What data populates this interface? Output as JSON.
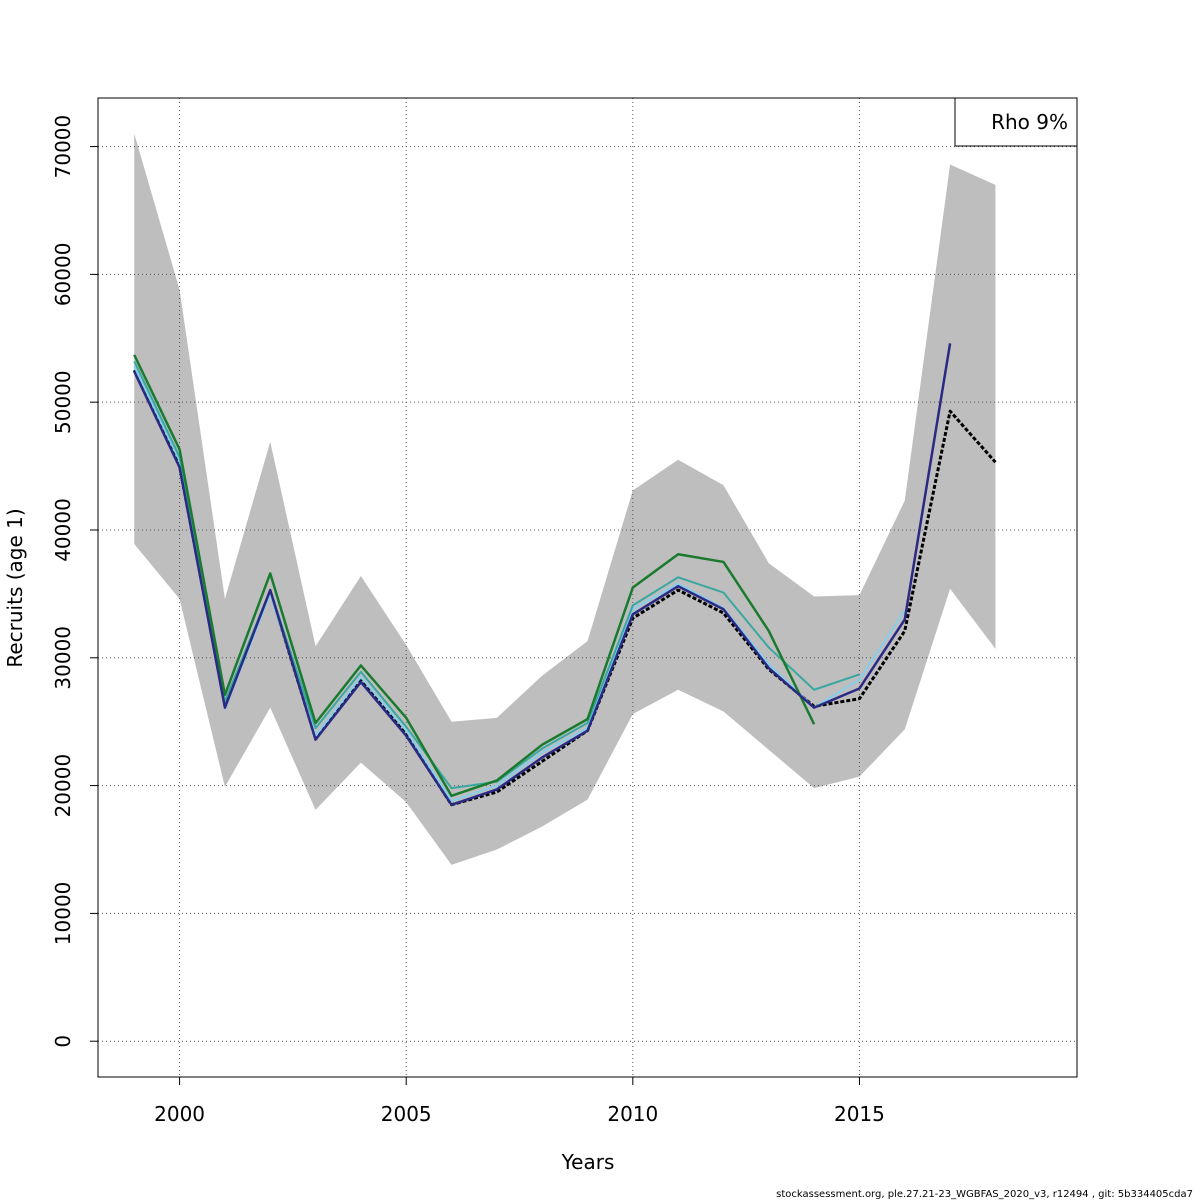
{
  "chart_data": {
    "type": "line",
    "title": "",
    "xlabel": "Years",
    "ylabel": "Recruits (age 1)",
    "xlim": [
      1998.2,
      2019.8
    ],
    "ylim": [
      -2800,
      73800
    ],
    "x_ticks": [
      2000,
      2005,
      2010,
      2015
    ],
    "y_ticks": [
      0,
      10000,
      20000,
      30000,
      40000,
      50000,
      60000,
      70000
    ],
    "grid": true,
    "legend": {
      "position": "top-right",
      "text": "Rho 9%"
    },
    "confidence_band": {
      "color": "#bebebe",
      "x": [
        1999,
        2000,
        2001,
        2002,
        2003,
        2004,
        2005,
        2006,
        2007,
        2008,
        2009,
        2010,
        2011,
        2012,
        2013,
        2014,
        2015,
        2016,
        2017,
        2018
      ],
      "upper": [
        71000,
        58800,
        34600,
        46900,
        30900,
        36400,
        31000,
        25000,
        25300,
        28600,
        31300,
        43100,
        45500,
        43500,
        37400,
        34800,
        34900,
        42300,
        68600,
        67000
      ],
      "lower": [
        38900,
        34600,
        19900,
        26100,
        18100,
        21800,
        18700,
        13800,
        15000,
        16800,
        18900,
        25600,
        27500,
        25800,
        22800,
        19800,
        20700,
        24400,
        35400,
        30700
      ]
    },
    "series": [
      {
        "color": "#000000",
        "dashed": true,
        "width": 3,
        "x": [
          1999,
          2000,
          2001,
          2002,
          2003,
          2004,
          2005,
          2006,
          2007,
          2008,
          2009,
          2010,
          2011,
          2012,
          2013,
          2014,
          2015,
          2016,
          2017,
          2018
        ],
        "values": [
          52500,
          45000,
          26300,
          35200,
          23700,
          28200,
          24000,
          18500,
          19500,
          21900,
          24300,
          33100,
          35300,
          33500,
          29100,
          26200,
          26800,
          32100,
          49300,
          45300
        ]
      },
      {
        "color": "#87ceeb",
        "dashed": false,
        "width": 2,
        "x": [
          1999,
          2000,
          2001,
          2002,
          2003,
          2004,
          2005,
          2006,
          2007,
          2008,
          2009,
          2010,
          2011,
          2012,
          2013,
          2014,
          2015,
          2016
        ],
        "values": [
          52800,
          45400,
          26000,
          35000,
          23900,
          28500,
          24300,
          18800,
          20000,
          22600,
          24500,
          33800,
          35800,
          33900,
          29500,
          26100,
          28300,
          33700
        ]
      },
      {
        "color": "#3aa8a0",
        "dashed": false,
        "width": 2,
        "x": [
          1999,
          2000,
          2001,
          2002,
          2003,
          2004,
          2005,
          2006,
          2007,
          2008,
          2009,
          2010,
          2011,
          2012,
          2013,
          2014,
          2015
        ],
        "values": [
          53200,
          45700,
          26600,
          35300,
          24500,
          28900,
          24600,
          19800,
          20300,
          22900,
          24900,
          34100,
          36300,
          35100,
          30800,
          27500,
          28700
        ]
      },
      {
        "color": "#1a7a2e",
        "dashed": false,
        "width": 2.5,
        "x": [
          1999,
          2000,
          2001,
          2002,
          2003,
          2004,
          2005,
          2006,
          2007,
          2008,
          2009,
          2010,
          2011,
          2012,
          2013,
          2014
        ],
        "values": [
          53700,
          46300,
          27100,
          36600,
          24900,
          29400,
          25300,
          19200,
          20400,
          23200,
          25200,
          35500,
          38100,
          37500,
          32100,
          24800
        ]
      },
      {
        "color": "#2a2a85",
        "dashed": false,
        "width": 2.5,
        "x": [
          1999,
          2000,
          2001,
          2002,
          2003,
          2004,
          2005,
          2006,
          2007,
          2008,
          2009,
          2010,
          2011,
          2012,
          2013,
          2014,
          2015,
          2016,
          2017
        ],
        "values": [
          52400,
          44900,
          26100,
          35300,
          23600,
          28100,
          23900,
          18500,
          19700,
          22200,
          24300,
          33400,
          35600,
          33800,
          29200,
          26100,
          27600,
          33000,
          54600
        ]
      }
    ]
  },
  "footer_note": "stockassessment.org, ple.27.21-23_WGBFAS_2020_v3, r12494 , git: 5b334405cda7"
}
